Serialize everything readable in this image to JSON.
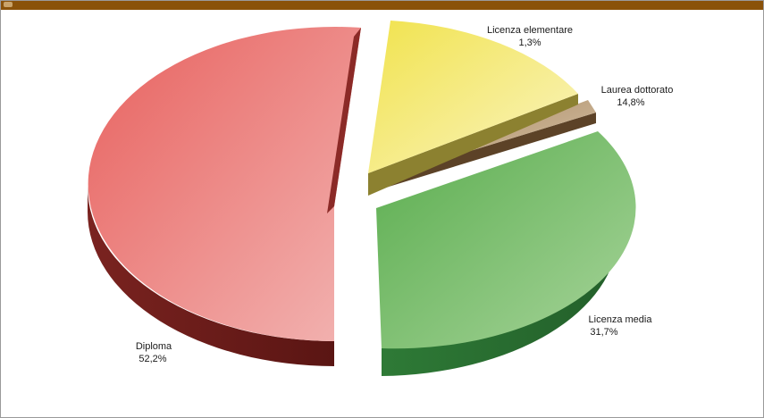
{
  "colors": {
    "header": "#8a5209",
    "diploma": "#e8615e",
    "licenza_media": "#5fb155",
    "laurea": "#f1e34e",
    "elementare": "#b89c75"
  },
  "chart_data": {
    "type": "pie",
    "title": "",
    "categories": [
      "Diploma",
      "Licenza media",
      "Licenza elementare",
      "Laurea dottorato"
    ],
    "values": [
      52.2,
      31.7,
      1.3,
      14.8
    ],
    "value_labels": [
      "52,2%",
      "31,7%",
      "1,3%",
      "14,8%"
    ],
    "exploded": true,
    "style": "3d"
  }
}
